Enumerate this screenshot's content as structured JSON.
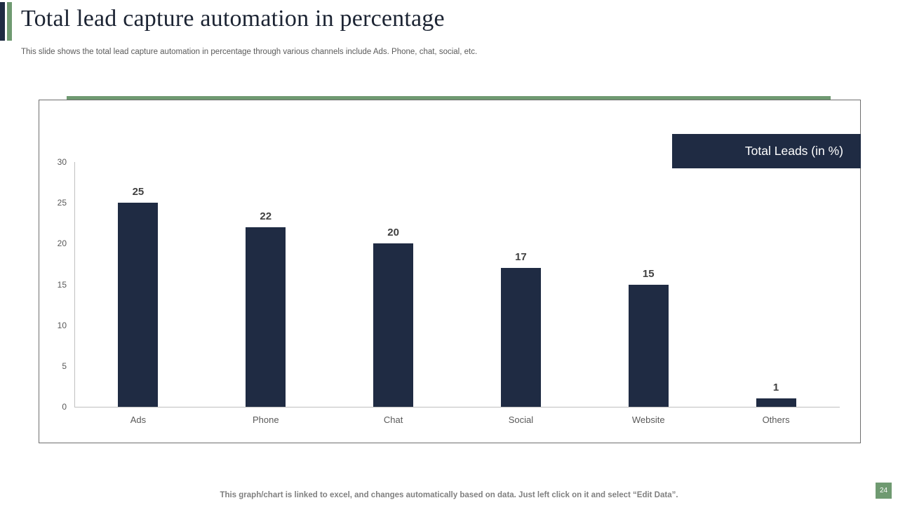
{
  "slide": {
    "title": "Total lead capture automation in percentage",
    "subtitle": "This slide shows the total lead capture automation in percentage through various channels include Ads. Phone, chat, social, etc.",
    "footer_note": "This graph/chart is linked to excel, and changes automatically based on data. Just left click on it and select “Edit Data”.",
    "page_number": "24"
  },
  "legend": {
    "label": "Total Leads (in %)"
  },
  "colors": {
    "bar": "#1F2B43",
    "accent_green": "#6F9A71",
    "accent_navy": "#1F2B43",
    "axis_line": "#BFBFBF",
    "value_label": "#404040",
    "tick_label": "#595959",
    "panel_border": "#6E6E6E",
    "legend_bg": "#1F2B43",
    "legend_text": "#FFFFFF"
  },
  "chart_data": {
    "type": "bar",
    "title": "Total Leads (in %)",
    "categories": [
      "Ads",
      "Phone",
      "Chat",
      "Social",
      "Website",
      "Others"
    ],
    "values": [
      25,
      22,
      20,
      17,
      15,
      1
    ],
    "xlabel": "",
    "ylabel": "",
    "ylim": [
      0,
      30
    ],
    "yticks": [
      0,
      5,
      10,
      15,
      20,
      25,
      30
    ],
    "grid": false,
    "legend_position": "top-right",
    "bar_color": "#1F2B43"
  }
}
